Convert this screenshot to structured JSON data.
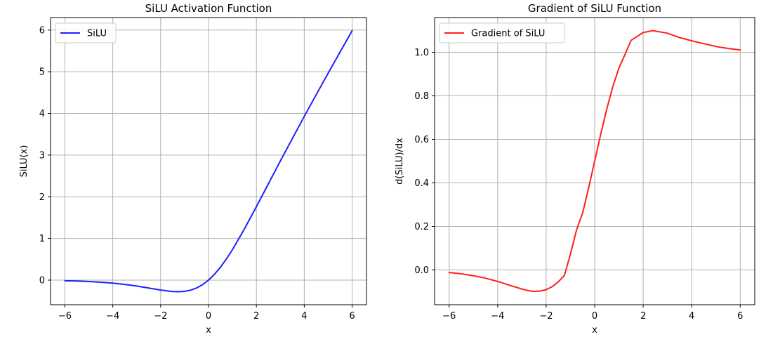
{
  "chart_data": [
    {
      "type": "line",
      "title": "SiLU Activation Function",
      "xlabel": "x",
      "ylabel": "SiLU(x)",
      "xlim": [
        -6.6,
        6.6
      ],
      "ylim": [
        -0.59,
        6.3
      ],
      "xticks": [
        -6,
        -4,
        -2,
        0,
        2,
        4,
        6
      ],
      "xtick_labels": [
        "−6",
        "−4",
        "−2",
        "0",
        "2",
        "4",
        "6"
      ],
      "yticks": [
        0,
        1,
        2,
        3,
        4,
        5,
        6
      ],
      "ytick_labels": [
        "0",
        "1",
        "2",
        "3",
        "4",
        "5",
        "6"
      ],
      "grid": true,
      "legend_position": "top-left",
      "series": [
        {
          "name": "SiLU",
          "color": "#1f1fff",
          "x": [
            -6,
            -5.5,
            -5,
            -4.5,
            -4,
            -3.5,
            -3,
            -2.5,
            -2,
            -1.5,
            -1.25,
            -1,
            -0.75,
            -0.5,
            -0.25,
            0,
            0.25,
            0.5,
            0.75,
            1,
            1.5,
            2,
            2.5,
            3,
            3.5,
            4,
            4.5,
            5,
            5.5,
            6
          ],
          "y": [
            -0.015,
            -0.022,
            -0.034,
            -0.05,
            -0.072,
            -0.103,
            -0.142,
            -0.19,
            -0.238,
            -0.274,
            -0.278,
            -0.269,
            -0.241,
            -0.189,
            -0.11,
            0,
            0.14,
            0.311,
            0.51,
            0.731,
            1.227,
            1.762,
            2.31,
            2.858,
            3.393,
            3.928,
            4.45,
            4.967,
            5.477,
            5.985
          ]
        }
      ]
    },
    {
      "type": "line",
      "title": "Gradient of SiLU Function",
      "xlabel": "x",
      "ylabel": "d(SiLU)/dx",
      "xlim": [
        -6.6,
        6.6
      ],
      "ylim": [
        -0.16,
        1.16
      ],
      "xticks": [
        -6,
        -4,
        -2,
        0,
        2,
        4,
        6
      ],
      "xtick_labels": [
        "−6",
        "−4",
        "−2",
        "0",
        "2",
        "4",
        "6"
      ],
      "yticks": [
        0,
        0.2,
        0.4,
        0.6,
        0.8,
        1.0
      ],
      "ytick_labels": [
        "0.0",
        "0.2",
        "0.4",
        "0.6",
        "0.8",
        "1.0"
      ],
      "grid": true,
      "legend_position": "top-left",
      "series": [
        {
          "name": "Gradient of SiLU",
          "color": "#ff1f1f",
          "x": [
            -6,
            -5.5,
            -5,
            -4.5,
            -4,
            -3.5,
            -3,
            -2.75,
            -2.5,
            -2.25,
            -2,
            -1.75,
            -1.5,
            -1.25,
            -1,
            -0.75,
            -0.5,
            -0.25,
            0,
            0.25,
            0.5,
            0.75,
            1,
            1.25,
            1.5,
            1.75,
            2,
            2.4,
            3,
            3.5,
            4,
            4.5,
            5,
            5.5,
            6
          ],
          "y": [
            -0.012,
            -0.018,
            -0.027,
            -0.038,
            -0.053,
            -0.071,
            -0.088,
            -0.095,
            -0.099,
            -0.097,
            -0.091,
            -0.077,
            -0.055,
            -0.026,
            0.072,
            0.183,
            0.26,
            0.376,
            0.5,
            0.624,
            0.74,
            0.843,
            0.928,
            0.99,
            1.055,
            1.073,
            1.091,
            1.1,
            1.088,
            1.068,
            1.053,
            1.04,
            1.027,
            1.018,
            1.011
          ]
        }
      ]
    }
  ]
}
